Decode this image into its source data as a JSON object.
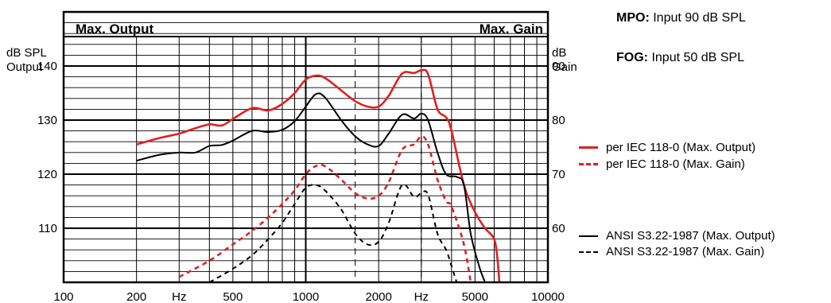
{
  "notes": [
    {
      "key": "MPO:",
      "text": " Input 90 dB SPL"
    },
    {
      "key": "FOG:",
      "text": " Input 50 dB SPL"
    }
  ],
  "legend": [
    {
      "label": "per IEC 118-0 (Max. Output)",
      "color": "#e02020",
      "dash": "solid"
    },
    {
      "label": "per IEC 118-0 (Max. Gain)",
      "color": "#e02020",
      "dash": "dashed"
    },
    {
      "label": "ANSI S3.22-1987 (Max. Output)",
      "color": "#000000",
      "dash": "solid"
    },
    {
      "label": "ANSI S3.22-1987 (Max. Gain)",
      "color": "#000000",
      "dash": "dashed"
    }
  ],
  "chart_data": {
    "type": "line",
    "header_left": "Max. Output",
    "header_right": "Max. Gain",
    "ylabel_left": [
      "dB SPL",
      "Output"
    ],
    "ylabel_right": [
      "dB",
      "Gain"
    ],
    "x_scale": "log",
    "xlim": [
      100,
      10000
    ],
    "ylim_left": [
      100,
      150
    ],
    "ylim_right": [
      50,
      100
    ],
    "x_ticks": [
      {
        "value": 100,
        "label": "100"
      },
      {
        "value": 200,
        "label": "200"
      },
      {
        "value": 300,
        "label": "Hz"
      },
      {
        "value": 500,
        "label": "500"
      },
      {
        "value": 1000,
        "label": "1000"
      },
      {
        "value": 2000,
        "label": "2000"
      },
      {
        "value": 3000,
        "label": "Hz"
      },
      {
        "value": 5000,
        "label": "5000"
      },
      {
        "value": 10000,
        "label": "10000"
      }
    ],
    "y_ticks_left": [
      {
        "value": 110,
        "label": "110"
      },
      {
        "value": 120,
        "label": "120"
      },
      {
        "value": 130,
        "label": "130"
      },
      {
        "value": 140,
        "label": "140"
      }
    ],
    "y_ticks_right": [
      {
        "value": 110,
        "label": "60"
      },
      {
        "value": 120,
        "label": "70"
      },
      {
        "value": 130,
        "label": "80"
      },
      {
        "value": 140,
        "label": "90"
      }
    ],
    "grid": true,
    "series": [
      {
        "color": "#e02020",
        "dash": "solid",
        "axis": "left",
        "points": [
          [
            200,
            125.5
          ],
          [
            250,
            126.7
          ],
          [
            300,
            127.5
          ],
          [
            350,
            128.5
          ],
          [
            400,
            129.2
          ],
          [
            450,
            129
          ],
          [
            500,
            130.2
          ],
          [
            600,
            132.2
          ],
          [
            700,
            131.8
          ],
          [
            800,
            133
          ],
          [
            900,
            135
          ],
          [
            1000,
            137.5
          ],
          [
            1100,
            138.2
          ],
          [
            1200,
            137.8
          ],
          [
            1400,
            135.5
          ],
          [
            1600,
            133.5
          ],
          [
            1800,
            132.5
          ],
          [
            2000,
            132.5
          ],
          [
            2200,
            134.5
          ],
          [
            2500,
            138.6
          ],
          [
            2800,
            138.7
          ],
          [
            3000,
            139.2
          ],
          [
            3200,
            138.5
          ],
          [
            3500,
            132
          ],
          [
            3800,
            130.5
          ],
          [
            4000,
            128
          ],
          [
            4500,
            118
          ],
          [
            5000,
            113
          ],
          [
            5500,
            110
          ],
          [
            6000,
            108
          ],
          [
            6200,
            104
          ],
          [
            6300,
            100
          ]
        ]
      },
      {
        "color": "#e02020",
        "dash": "dashed",
        "axis": "right",
        "points": [
          [
            300,
            51
          ],
          [
            400,
            54
          ],
          [
            500,
            57
          ],
          [
            600,
            59.5
          ],
          [
            700,
            62
          ],
          [
            800,
            64.5
          ],
          [
            900,
            67
          ],
          [
            1000,
            70
          ],
          [
            1100,
            71.5
          ],
          [
            1200,
            71.5
          ],
          [
            1400,
            69
          ],
          [
            1600,
            66.5
          ],
          [
            1800,
            65.5
          ],
          [
            2000,
            66
          ],
          [
            2200,
            68.5
          ],
          [
            2500,
            74.5
          ],
          [
            2800,
            75.5
          ],
          [
            3000,
            77
          ],
          [
            3200,
            75.5
          ],
          [
            3500,
            69
          ],
          [
            3800,
            65
          ],
          [
            4000,
            64
          ],
          [
            4500,
            57
          ],
          [
            4800,
            50
          ]
        ]
      },
      {
        "color": "#000000",
        "dash": "solid",
        "axis": "left",
        "points": [
          [
            200,
            122.5
          ],
          [
            250,
            123.6
          ],
          [
            300,
            124
          ],
          [
            350,
            124
          ],
          [
            400,
            125.2
          ],
          [
            450,
            125.4
          ],
          [
            500,
            126.2
          ],
          [
            600,
            128
          ],
          [
            700,
            127.8
          ],
          [
            800,
            128.2
          ],
          [
            900,
            129.8
          ],
          [
            1000,
            132.5
          ],
          [
            1100,
            134.8
          ],
          [
            1200,
            134.2
          ],
          [
            1400,
            130
          ],
          [
            1600,
            127
          ],
          [
            1800,
            125.5
          ],
          [
            2000,
            125.2
          ],
          [
            2200,
            127.5
          ],
          [
            2500,
            131
          ],
          [
            2800,
            130.3
          ],
          [
            3000,
            131.2
          ],
          [
            3200,
            130
          ],
          [
            3500,
            124
          ],
          [
            3800,
            120
          ],
          [
            4200,
            119.5
          ],
          [
            4500,
            118
          ],
          [
            4800,
            109
          ],
          [
            5200,
            103
          ],
          [
            5500,
            100
          ]
        ]
      },
      {
        "color": "#000000",
        "dash": "dashed",
        "axis": "right",
        "points": [
          [
            400,
            50
          ],
          [
            500,
            52.5
          ],
          [
            600,
            55
          ],
          [
            700,
            58
          ],
          [
            800,
            61
          ],
          [
            900,
            64.5
          ],
          [
            1000,
            67.5
          ],
          [
            1100,
            68
          ],
          [
            1200,
            67
          ],
          [
            1400,
            63.5
          ],
          [
            1600,
            59
          ],
          [
            1800,
            57
          ],
          [
            2000,
            57.5
          ],
          [
            2200,
            61
          ],
          [
            2500,
            68
          ],
          [
            2800,
            65.8
          ],
          [
            3000,
            66.5
          ],
          [
            3200,
            66.2
          ],
          [
            3500,
            59
          ],
          [
            3800,
            56
          ],
          [
            4000,
            53
          ],
          [
            4200,
            50
          ]
        ]
      }
    ]
  }
}
